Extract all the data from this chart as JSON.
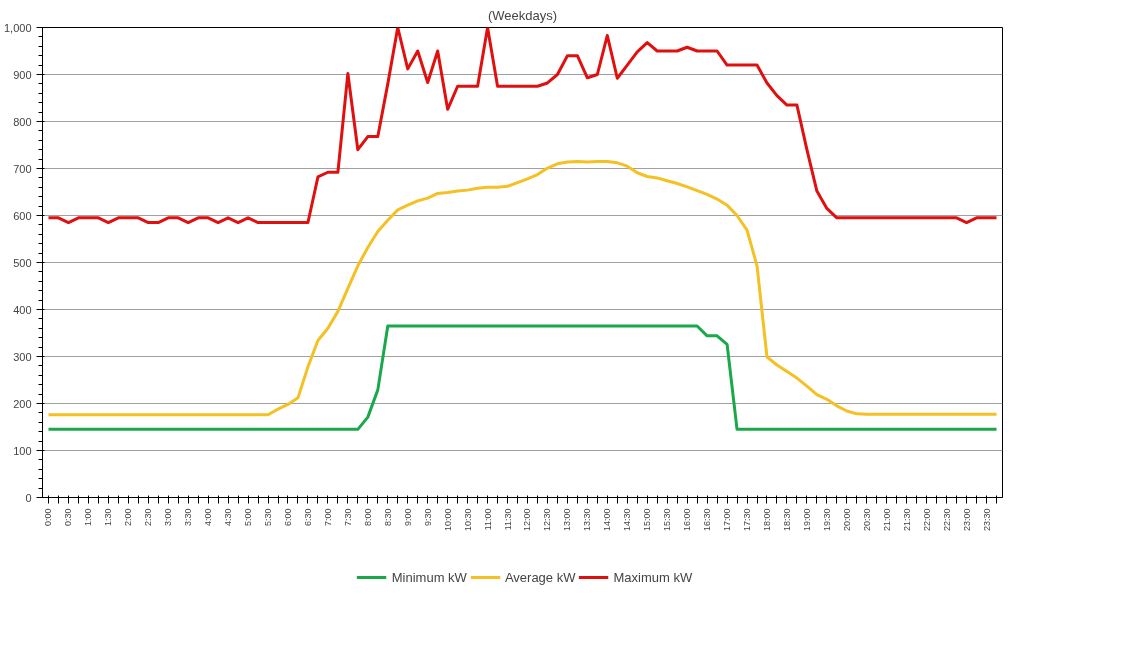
{
  "chart_data": {
    "type": "line",
    "title": "(Weekdays)",
    "categories": [
      "0:00",
      null,
      "0:30",
      null,
      "1:00",
      null,
      "1:30",
      null,
      "2:00",
      null,
      "2:30",
      null,
      "3:00",
      null,
      "3:30",
      null,
      "4:00",
      null,
      "4:30",
      null,
      "5:00",
      null,
      "5:30",
      null,
      "6:00",
      null,
      "6:30",
      null,
      "7:00",
      null,
      "7:30",
      null,
      "8:00",
      null,
      "8:30",
      null,
      "9:00",
      null,
      "9:30",
      null,
      "10:00",
      null,
      "10:30",
      null,
      "11:00",
      null,
      "11:30",
      null,
      "12:00",
      null,
      "12:30",
      null,
      "13:00",
      null,
      "13:30",
      null,
      "14:00",
      null,
      "14:30",
      null,
      "15:00",
      null,
      "15:30",
      null,
      "16:00",
      null,
      "16:30",
      null,
      "17:00",
      null,
      "17:30",
      null,
      "18:00",
      null,
      "18:30",
      null,
      "19:00",
      null,
      "19:30",
      null,
      "20:00",
      null,
      "20:30",
      null,
      "21:00",
      null,
      "21:30",
      null,
      "22:00",
      null,
      "22:30",
      null,
      "23:00",
      null,
      "23:30",
      null
    ],
    "series": [
      {
        "name": "Minimum kW",
        "color": "#1aa84a",
        "values": [
          145,
          145,
          145,
          145,
          145,
          145,
          145,
          145,
          145,
          145,
          145,
          145,
          145,
          145,
          145,
          145,
          145,
          145,
          145,
          145,
          145,
          145,
          145,
          145,
          145,
          145,
          145,
          145,
          145,
          145,
          145,
          145,
          171,
          229,
          365,
          365,
          365,
          365,
          365,
          365,
          365,
          365,
          365,
          365,
          365,
          365,
          365,
          365,
          365,
          365,
          365,
          365,
          365,
          365,
          365,
          365,
          365,
          365,
          365,
          365,
          365,
          365,
          365,
          365,
          365,
          365,
          344,
          344,
          326,
          145,
          145,
          145,
          145,
          145,
          145,
          145,
          145,
          145,
          145,
          145,
          145,
          145,
          145,
          145,
          145,
          145,
          145,
          145,
          145,
          145,
          145,
          145,
          145,
          145,
          145,
          145
        ]
      },
      {
        "name": "Average kW",
        "color": "#f5c023",
        "values": [
          176,
          176,
          176,
          176,
          176,
          176,
          176,
          176,
          176,
          176,
          176,
          176,
          176,
          176,
          176,
          176,
          176,
          176,
          176,
          176,
          176,
          176,
          176,
          188,
          198,
          212,
          278,
          334,
          360,
          396,
          445,
          493,
          532,
          566,
          590,
          612,
          622,
          631,
          637,
          647,
          649,
          652,
          654,
          658,
          660,
          660,
          662,
          670,
          678,
          687,
          701,
          710,
          714,
          715,
          714,
          715,
          715,
          712,
          705,
          691,
          683,
          680,
          674,
          668,
          661,
          653,
          645,
          635,
          622,
          600,
          569,
          493,
          299,
          282,
          268,
          254,
          237,
          219,
          209,
          195,
          184,
          178,
          177,
          177,
          177,
          177,
          177,
          177,
          177,
          177,
          177,
          177,
          177,
          177,
          177,
          177
        ]
      },
      {
        "name": "Maximum kW",
        "color": "#e01010",
        "values": [
          595,
          595,
          585,
          595,
          595,
          595,
          585,
          595,
          595,
          595,
          585,
          585,
          595,
          595,
          585,
          595,
          595,
          585,
          595,
          585,
          595,
          585,
          585,
          585,
          585,
          585,
          585,
          682,
          692,
          692,
          902,
          740,
          768,
          768,
          880,
          1000,
          912,
          950,
          883,
          950,
          826,
          875,
          875,
          875,
          1000,
          875,
          875,
          875,
          875,
          875,
          882,
          900,
          940,
          940,
          893,
          900,
          983,
          892,
          920,
          948,
          968,
          950,
          950,
          950,
          958,
          950,
          950,
          950,
          920,
          920,
          920,
          920,
          882,
          855,
          835,
          835,
          740,
          652,
          615,
          595,
          595,
          595,
          595,
          595,
          595,
          595,
          595,
          595,
          595,
          595,
          595,
          595,
          585,
          595,
          595,
          595
        ]
      }
    ],
    "ylim": [
      0,
      1000
    ],
    "yticks": [
      0,
      100,
      200,
      300,
      400,
      500,
      600,
      700,
      800,
      900,
      {
        "value": 1000,
        "label": "1,000"
      }
    ],
    "grid": "y",
    "legend": "bottom",
    "marker": "none",
    "line_style": "solid"
  }
}
